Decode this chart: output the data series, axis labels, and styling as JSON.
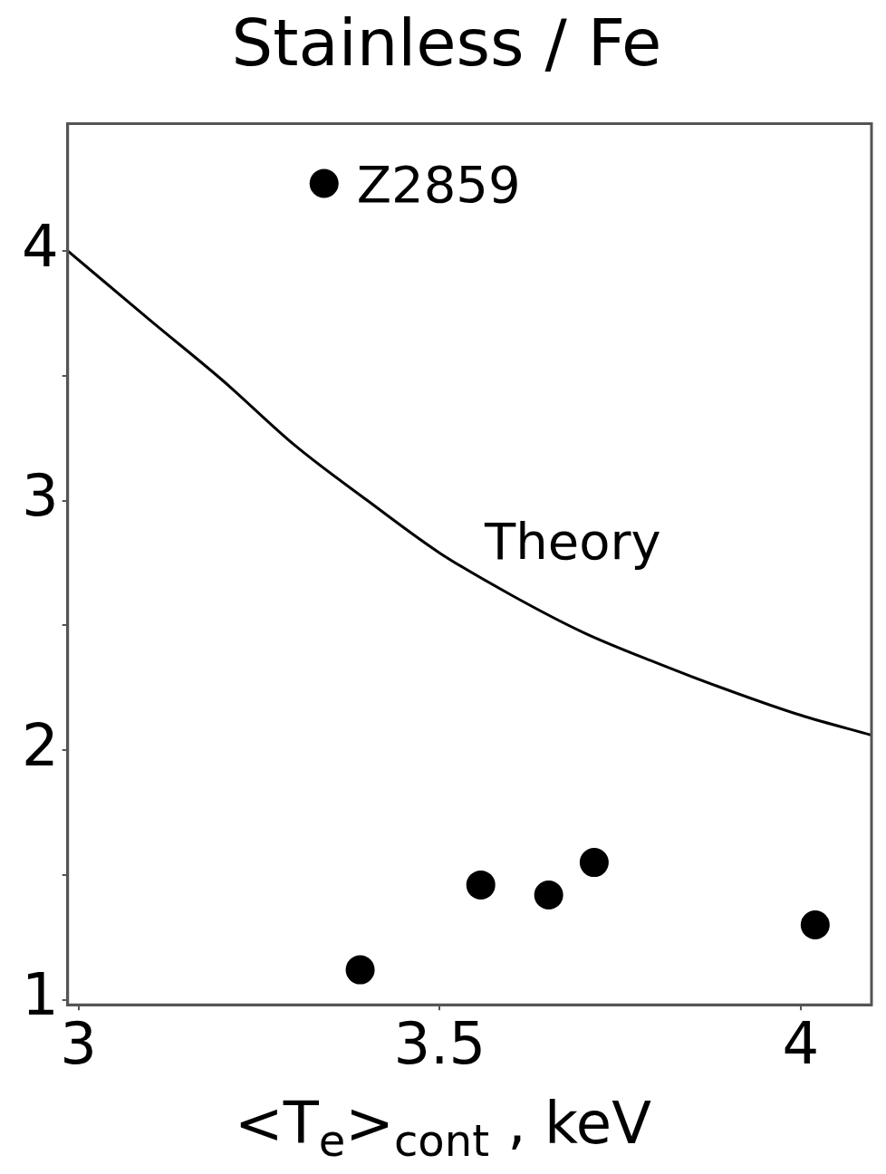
{
  "chart_data": {
    "type": "scatter",
    "title": "Stainless / Fe",
    "xlabel": "<T$_{e}$>$_{cont}$ , keV",
    "xlim": [
      2.985,
      4.098
    ],
    "xticks": [
      3,
      3.5,
      4
    ],
    "ylim": [
      0.98,
      4.51
    ],
    "yticks": [
      1,
      {
        "value": 1.5,
        "label": null
      },
      2,
      {
        "value": 2.5,
        "label": null
      },
      3,
      {
        "value": 3.5,
        "label": null
      },
      4
    ],
    "grid": false,
    "legend": false,
    "marker": "circle",
    "series": [
      {
        "color": "#000000",
        "x": [
          3.34,
          3.39,
          3.557,
          3.651,
          3.714,
          4.02
        ],
        "values": [
          4.27,
          1.12,
          1.46,
          1.42,
          1.55,
          1.3
        ]
      },
      {
        "type": "line",
        "name": "Theory",
        "color": "#000000",
        "marker": "none",
        "line_style": "solid",
        "x": [
          2.985,
          3.1,
          3.2,
          3.3,
          3.4,
          3.5,
          3.6,
          3.7,
          3.8,
          3.9,
          4.0,
          4.098
        ],
        "values": [
          4.0,
          3.72,
          3.48,
          3.22,
          3.0,
          2.79,
          2.62,
          2.47,
          2.35,
          2.24,
          2.14,
          2.06
        ]
      }
    ],
    "annotations": [
      {
        "text": "Z2859",
        "x": 3.34,
        "y": 4.27
      }
    ]
  }
}
